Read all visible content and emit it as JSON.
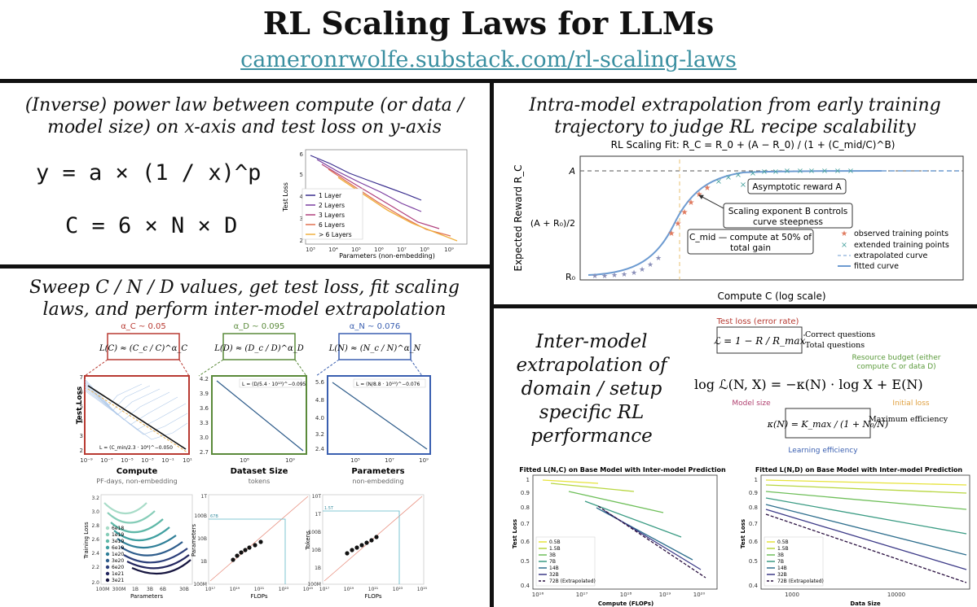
{
  "header": {
    "title": "RL Scaling Laws for LLMs",
    "url": "cameronrwolfe.substack.com/rl-scaling-laws"
  },
  "panel_top_left": {
    "heading_line1": "(Inverse) power law between compute (or data /",
    "heading_line2": "model size) on x-axis and test loss on y-axis",
    "formula1": "y = a × (1 / x)^p",
    "formula2": "C = 6 × N × D",
    "chart": {
      "ylabel": "Test Loss",
      "xlabel": "Parameters (non-embedding)",
      "xticks": [
        "10³",
        "10⁴",
        "10⁵",
        "10⁶",
        "10⁷",
        "10⁸",
        "10⁹"
      ],
      "yticks": [
        "2",
        "3",
        "4",
        "5",
        "6"
      ],
      "legend": [
        "1 Layer",
        "2 Layers",
        "3 Layers",
        "6 Layers",
        "> 6 Layers"
      ],
      "colors": [
        "#3b2f8f",
        "#7b3fa0",
        "#b0407d",
        "#e07050",
        "#f0b040"
      ]
    }
  },
  "panel_top_right": {
    "heading_line1": "Intra-model extrapolation from early training",
    "heading_line2": "trajectory to judge RL recipe scalability",
    "chart": {
      "title": "RL Scaling Fit: R_C = R_0 + (A − R_0) / (1 + (C_mid/C)^B)",
      "ylabel": "Expected Reward  R_C",
      "xlabel": "Compute  C  (log scale)",
      "ytick_A": "A",
      "ytick_mid": "(A + R₀)/2",
      "ytick_R0": "R₀",
      "annot_asymptotic": "Asymptotic reward A",
      "annot_exponent_1": "Scaling exponent B controls",
      "annot_exponent_2": "curve steepness",
      "annot_cmid_1": "C_mid — compute at 50% of",
      "annot_cmid_2": "total gain",
      "legend": [
        "observed training points",
        "extended training points",
        "extrapolated curve",
        "fitted curve"
      ]
    }
  },
  "panel_bottom_left": {
    "heading_line1": "Sweep C / N / D values, get test loss, fit scaling",
    "heading_line2": "laws, and perform inter-model extrapolation",
    "alpha_c": "α_C ~ 0.05",
    "alpha_d": "α_D ~ 0.095",
    "alpha_n": "α_N ~ 0.076",
    "law_c": "L(C) ≈ (C_c / C)^α_C",
    "law_d": "L(D) ≈ (D_c / D)^α_D",
    "law_n": "L(N) ≈ (N_c / N)^α_N",
    "compute": {
      "ylabel": "Test Loss",
      "xlabel": "Compute",
      "sublabel": "PF-days, non-embedding",
      "yticks": [
        "7",
        "6",
        "5",
        "4",
        "3",
        "2"
      ],
      "xticks": [
        "10⁻⁹",
        "10⁻⁷",
        "10⁻⁵",
        "10⁻³",
        "10⁻¹",
        "10¹"
      ],
      "legend": "L = (C_min/2.3 · 10⁸)^−0.050"
    },
    "dataset": {
      "xlabel": "Dataset Size",
      "sublabel": "tokens",
      "yticks": [
        "4.2",
        "3.9",
        "3.6",
        "3.3",
        "3.0",
        "2.7"
      ],
      "xticks": [
        "10⁸",
        "10⁹"
      ],
      "legend": "L = (D/5.4 · 10¹³)^−0.095"
    },
    "params": {
      "xlabel": "Parameters",
      "sublabel": "non-embedding",
      "yticks": [
        "5.6",
        "4.8",
        "4.0",
        "3.2",
        "2.4"
      ],
      "xticks": [
        "10⁵",
        "10⁷",
        "10⁹"
      ],
      "legend": "L = (N/8.8 · 10¹³)^−0.076"
    },
    "isoflop": {
      "ylabel": "Training Loss",
      "xlabel": "Parameters",
      "yticks": [
        "3.2",
        "3.0",
        "2.8",
        "2.6",
        "2.4",
        "2.2",
        "2.0"
      ],
      "xticks": [
        "100M",
        "300M",
        "1B",
        "3B",
        "6B",
        "30B"
      ],
      "legend": [
        "6e18",
        "1e19",
        "3e19",
        "6e19",
        "1e20",
        "3e20",
        "6e20",
        "1e21",
        "3e21"
      ]
    },
    "opt_params": {
      "ylabel": "Parameters",
      "xlabel": "FLOPs",
      "yticks": [
        "1T",
        "100B",
        "10B",
        "1B",
        "100M"
      ],
      "xticks": [
        "10¹⁷",
        "10¹⁹",
        "10²¹",
        "10²³",
        "10²⁵"
      ],
      "marker": "67B"
    },
    "opt_tokens": {
      "ylabel": "Tokens",
      "xlabel": "FLOPs",
      "yticks": [
        "10T",
        "1T",
        "100B",
        "10B",
        "1B",
        "100M"
      ],
      "xticks": [
        "10¹⁷",
        "10¹⁹",
        "10²¹",
        "10²³",
        "10²⁵"
      ],
      "marker": "1.5T"
    }
  },
  "panel_bottom_right": {
    "heading_lines": [
      "Inter-model",
      "extrapolation of",
      "domain / setup",
      "specific RL",
      "performance"
    ],
    "eq": {
      "test_loss": "Test loss (error rate)",
      "L_def": "ℒ = 1 − R / R_max",
      "correct": "Correct questions",
      "total": "Total questions",
      "budget1": "Resource budget (either",
      "budget2": "compute C or data D)",
      "main": "log ℒ(N, X) = −κ(N) · log X + E(N)",
      "model_size": "Model size",
      "initial_loss": "Initial loss",
      "kappa": "κ(N) = K_max / (1 + N₀/N)",
      "max_eff": "Maximum efficiency",
      "learn_eff": "Learning efficiency"
    },
    "chart_left": {
      "title": "Fitted L(N,C) on Base Model with Inter-model Prediction",
      "ylabel": "Test Loss",
      "xlabel": "Compute (FLOPs)",
      "yticks": [
        "1",
        "0.9",
        "0.8",
        "0.7",
        "0.6",
        "0.5",
        "0.4"
      ],
      "xticks": [
        "10¹⁶",
        "10¹⁷",
        "10¹⁸",
        "10¹⁹",
        "10²⁰"
      ],
      "legend": [
        "0.5B",
        "1.5B",
        "3B",
        "7B",
        "14B",
        "32B",
        "72B (Extrapolated)"
      ]
    },
    "chart_right": {
      "title": "Fitted L(N,D) on Base Model with Inter-model Prediction",
      "ylabel": "Test Loss",
      "xlabel": "Data Size",
      "yticks": [
        "1",
        "0.9",
        "0.8",
        "0.7",
        "0.6",
        "0.5",
        "0.4"
      ],
      "xticks": [
        "1000",
        "10000"
      ],
      "legend": [
        "0.5B",
        "1.5B",
        "3B",
        "7B",
        "14B",
        "32B",
        "72B (Extrapolated)"
      ]
    },
    "colors": [
      "#e6e33a",
      "#b7d63f",
      "#6fbf5a",
      "#3a9b83",
      "#2f6f8e",
      "#3d3b88",
      "#2a1040"
    ]
  }
}
